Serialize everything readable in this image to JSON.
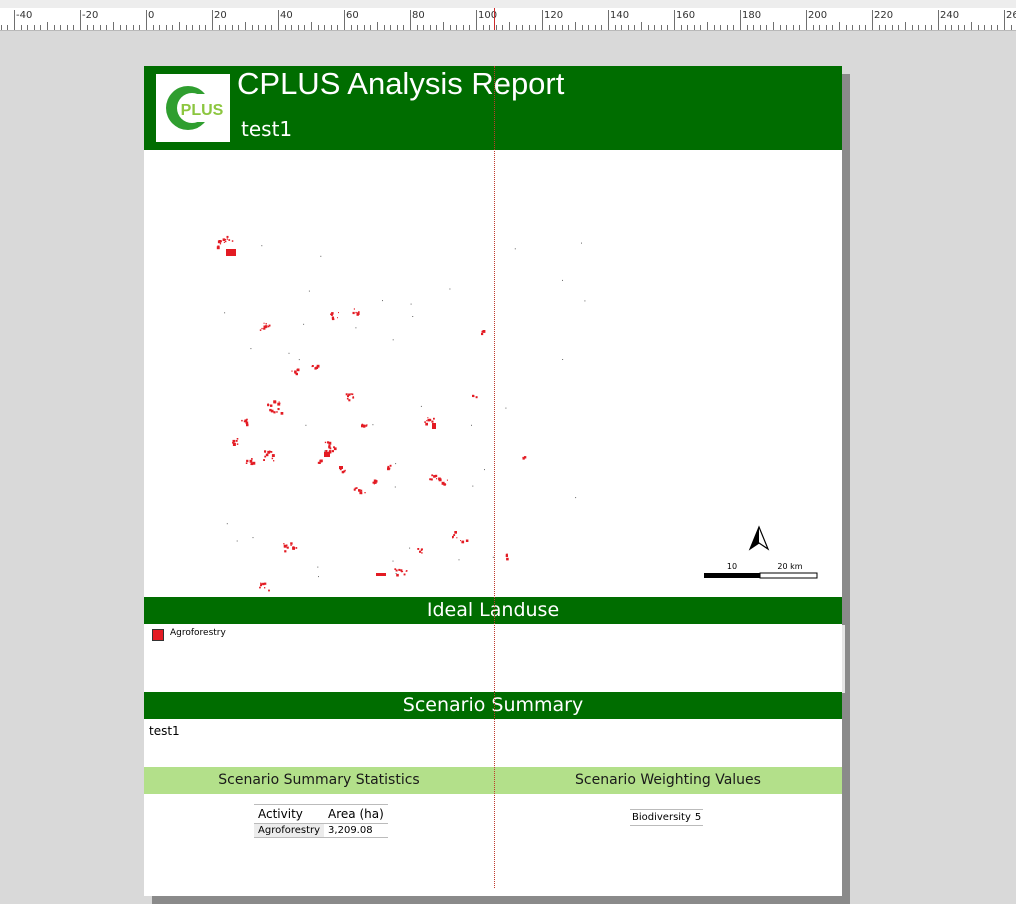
{
  "ruler": {
    "labels": [
      "-40",
      "-20",
      "0",
      "20",
      "40",
      "60",
      "80",
      "100",
      "120",
      "140",
      "160",
      "180",
      "200",
      "220",
      "240",
      "26"
    ]
  },
  "report": {
    "title": "CPLUS Analysis Report",
    "scenario_name": "test1",
    "logo_text": "PLUS",
    "logo_letter": "C"
  },
  "map": {
    "north_symbol": "north-arrow",
    "scale_labels": [
      "10",
      "20 km"
    ],
    "feature_color": "#e31b23"
  },
  "ideal_landuse": {
    "heading": "Ideal Landuse",
    "legend": [
      {
        "label": "Agroforestry",
        "color": "#e31b23"
      }
    ]
  },
  "scenario_summary": {
    "heading": "Scenario Summary",
    "text": "test1"
  },
  "statistics": {
    "heading": "Scenario Summary Statistics",
    "columns": [
      "Activity",
      "Area (ha)"
    ],
    "rows": [
      [
        "Agroforestry",
        "3,209.08"
      ]
    ]
  },
  "weighting": {
    "heading": "Scenario Weighting Values",
    "rows": [
      [
        "Biodiversity",
        "5"
      ]
    ]
  },
  "colors": {
    "header_green": "#006d00",
    "light_green": "#b3e08a"
  }
}
